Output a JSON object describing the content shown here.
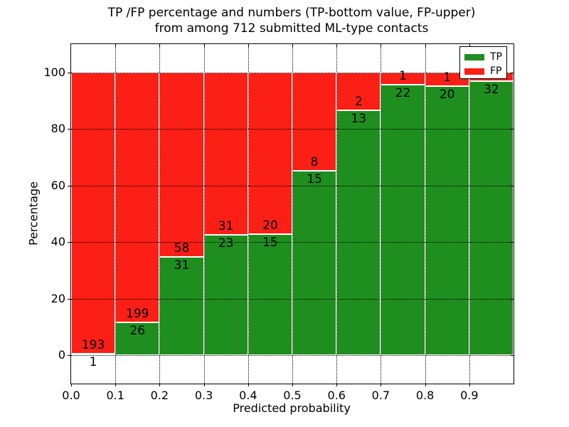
{
  "title": {
    "line1": "TP /FP percentage and numbers (TP-bottom value, FP-upper)",
    "line2": "from among 712 submitted ML-type contacts"
  },
  "chart_data": {
    "type": "bar",
    "stacked": true,
    "title": "TP /FP percentage and numbers (TP-bottom value, FP-upper) from among 712 submitted ML-type contacts",
    "xlabel": "Predicted probability",
    "ylabel": "Percentage",
    "categories": [
      "0.0-0.1",
      "0.1-0.2",
      "0.2-0.3",
      "0.3-0.4",
      "0.4-0.5",
      "0.5-0.6",
      "0.6-0.7",
      "0.7-0.8",
      "0.8-0.9",
      "0.9-1.0"
    ],
    "series": [
      {
        "name": "TP",
        "color": "#1e8e1e",
        "counts": [
          1,
          26,
          31,
          23,
          15,
          15,
          13,
          22,
          20,
          32
        ]
      },
      {
        "name": "FP",
        "color": "#fb1f16",
        "counts": [
          193,
          199,
          58,
          31,
          20,
          8,
          2,
          1,
          1,
          1
        ]
      }
    ],
    "bar_unit": "percent of bin total (TP+FP stacked to 100%)",
    "xticks": [
      "0.0",
      "0.1",
      "0.2",
      "0.3",
      "0.4",
      "0.5",
      "0.6",
      "0.7",
      "0.8",
      "0.9"
    ],
    "yticks": [
      0,
      20,
      40,
      60,
      80,
      100
    ],
    "xlim": [
      0.0,
      1.0
    ],
    "ylim": [
      -10,
      110
    ],
    "grid": "dotted, on",
    "legend_position": "upper right",
    "total_contacts": 712
  },
  "legend": {
    "entries": [
      {
        "label": "TP",
        "color": "#1e8e1e"
      },
      {
        "label": "FP",
        "color": "#fb1f16"
      }
    ]
  }
}
